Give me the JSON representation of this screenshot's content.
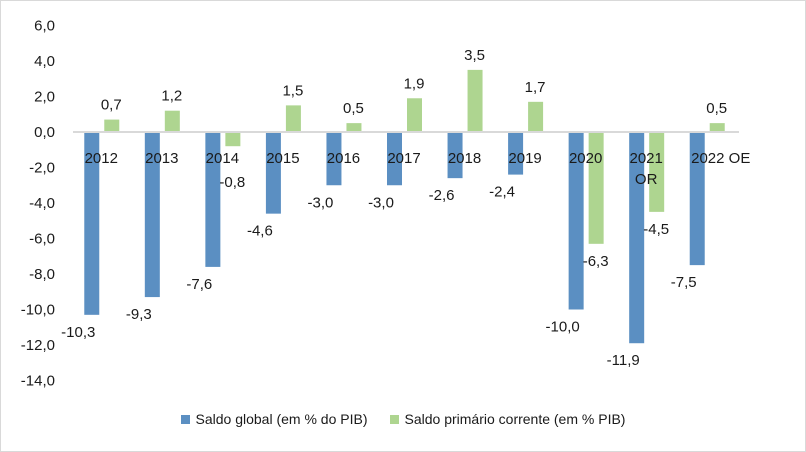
{
  "chart_data": {
    "type": "bar",
    "categories": [
      "2012",
      "2013",
      "2014",
      "2015",
      "2016",
      "2017",
      "2018",
      "2019",
      "2020",
      "2021 OR",
      "2022 OE"
    ],
    "series": [
      {
        "name": "Saldo global (em % do PIB)",
        "color": "#5B8FC2",
        "values": [
          -10.3,
          -9.3,
          -7.6,
          -4.6,
          -3.0,
          -3.0,
          -2.6,
          -2.4,
          -10.0,
          -11.9,
          -7.5
        ]
      },
      {
        "name": "Saldo primário corrente (em % PIB)",
        "color": "#AED590",
        "values": [
          0.7,
          1.2,
          -0.8,
          1.5,
          0.5,
          1.9,
          3.5,
          1.7,
          -6.3,
          -4.5,
          0.5
        ]
      }
    ],
    "yticks": [
      "6,0",
      "4,0",
      "2,0",
      "0,0",
      "-2,0",
      "-4,0",
      "-6,0",
      "-8,0",
      "-10,0",
      "-12,0",
      "-14,0"
    ],
    "ylim": [
      -14,
      6
    ],
    "grid": false,
    "legend": "bottom",
    "title": "",
    "xlabel": "",
    "ylabel": ""
  }
}
